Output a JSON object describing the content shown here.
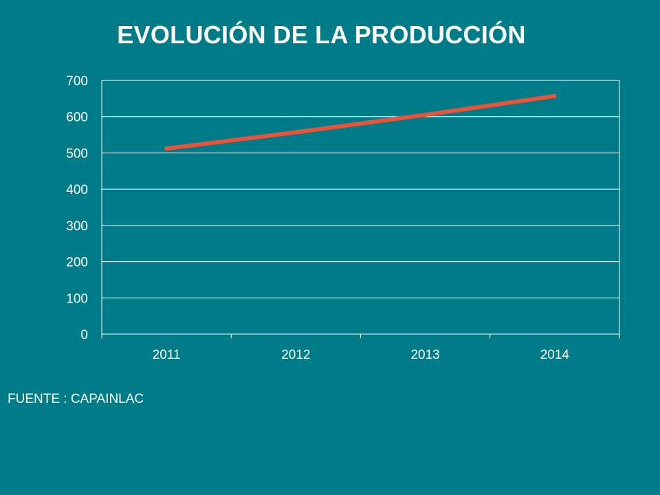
{
  "title": "EVOLUCIÓN DE LA PRODUCCIÓN",
  "source_note": "FUENTE : CAPAINLAC",
  "colors": {
    "background": "#007c89",
    "series": "#e8533a",
    "grid": "#ffffff",
    "text": "#ffffff"
  },
  "chart_data": {
    "type": "line",
    "categories": [
      "2011",
      "2012",
      "2013",
      "2014"
    ],
    "series": [
      {
        "values": [
          512,
          557,
          605,
          657
        ]
      }
    ],
    "ylim": [
      0,
      700
    ],
    "yticks": [
      0,
      100,
      200,
      300,
      400,
      500,
      600,
      700
    ],
    "grid": true,
    "legend": "none"
  }
}
